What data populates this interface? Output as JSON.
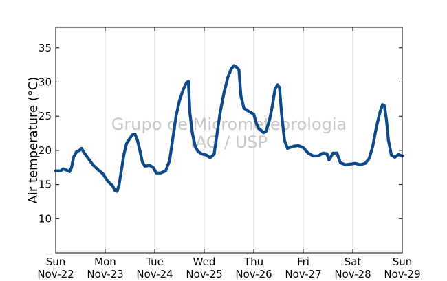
{
  "chart_data": {
    "type": "scatter",
    "ylabel": "Air temperature (°C)",
    "ylim": [
      5,
      38
    ],
    "yticks": [
      10,
      15,
      20,
      25,
      30,
      35
    ],
    "xlim": [
      0,
      7
    ],
    "xticks": [
      {
        "day": "Sun",
        "date": "Nov-22"
      },
      {
        "day": "Mon",
        "date": "Nov-23"
      },
      {
        "day": "Tue",
        "date": "Nov-24"
      },
      {
        "day": "Wed",
        "date": "Nov-25"
      },
      {
        "day": "Thu",
        "date": "Nov-26"
      },
      {
        "day": "Fri",
        "date": "Nov-27"
      },
      {
        "day": "Sat",
        "date": "Nov-28"
      },
      {
        "day": "Sun",
        "date": "Nov-29"
      }
    ],
    "grid": "vertical",
    "watermark": [
      "Grupo de Micrometeorologia",
      "IAG / USP"
    ],
    "series": [
      {
        "color": "#0d4a8a",
        "points": [
          [
            0.0,
            17.0
          ],
          [
            0.1,
            17.0
          ],
          [
            0.15,
            17.3
          ],
          [
            0.22,
            17.1
          ],
          [
            0.28,
            16.9
          ],
          [
            0.32,
            17.5
          ],
          [
            0.36,
            19.0
          ],
          [
            0.42,
            19.8
          ],
          [
            0.48,
            20.0
          ],
          [
            0.52,
            20.3
          ],
          [
            0.58,
            19.6
          ],
          [
            0.65,
            18.9
          ],
          [
            0.75,
            17.9
          ],
          [
            0.85,
            17.2
          ],
          [
            0.95,
            16.6
          ],
          [
            1.05,
            15.5
          ],
          [
            1.15,
            14.8
          ],
          [
            1.2,
            14.1
          ],
          [
            1.24,
            14.0
          ],
          [
            1.28,
            15.0
          ],
          [
            1.32,
            16.8
          ],
          [
            1.38,
            19.5
          ],
          [
            1.43,
            21.0
          ],
          [
            1.5,
            21.8
          ],
          [
            1.55,
            22.3
          ],
          [
            1.6,
            22.4
          ],
          [
            1.65,
            21.5
          ],
          [
            1.7,
            20.0
          ],
          [
            1.75,
            18.3
          ],
          [
            1.8,
            17.7
          ],
          [
            1.9,
            17.8
          ],
          [
            1.97,
            17.5
          ],
          [
            2.03,
            16.7
          ],
          [
            2.12,
            16.7
          ],
          [
            2.22,
            17.0
          ],
          [
            2.3,
            18.5
          ],
          [
            2.36,
            21.5
          ],
          [
            2.43,
            25.0
          ],
          [
            2.5,
            27.3
          ],
          [
            2.58,
            29.0
          ],
          [
            2.64,
            29.9
          ],
          [
            2.68,
            30.1
          ],
          [
            2.71,
            25.5
          ],
          [
            2.76,
            22.5
          ],
          [
            2.82,
            20.5
          ],
          [
            2.88,
            19.8
          ],
          [
            2.95,
            19.5
          ],
          [
            3.05,
            19.3
          ],
          [
            3.12,
            18.9
          ],
          [
            3.2,
            19.5
          ],
          [
            3.26,
            22.5
          ],
          [
            3.32,
            25.5
          ],
          [
            3.4,
            28.5
          ],
          [
            3.48,
            30.8
          ],
          [
            3.55,
            32.0
          ],
          [
            3.6,
            32.4
          ],
          [
            3.65,
            32.2
          ],
          [
            3.7,
            31.8
          ],
          [
            3.74,
            28.0
          ],
          [
            3.8,
            26.2
          ],
          [
            3.9,
            25.7
          ],
          [
            4.0,
            25.3
          ],
          [
            4.05,
            24.0
          ],
          [
            4.1,
            23.2
          ],
          [
            4.2,
            22.6
          ],
          [
            4.25,
            22.8
          ],
          [
            4.32,
            24.5
          ],
          [
            4.38,
            26.7
          ],
          [
            4.43,
            29.0
          ],
          [
            4.48,
            29.6
          ],
          [
            4.52,
            29.2
          ],
          [
            4.56,
            25.5
          ],
          [
            4.62,
            21.5
          ],
          [
            4.68,
            20.3
          ],
          [
            4.8,
            20.6
          ],
          [
            4.9,
            20.7
          ],
          [
            5.0,
            20.4
          ],
          [
            5.1,
            19.6
          ],
          [
            5.2,
            19.2
          ],
          [
            5.3,
            19.2
          ],
          [
            5.4,
            19.6
          ],
          [
            5.48,
            19.5
          ],
          [
            5.52,
            18.6
          ],
          [
            5.6,
            19.6
          ],
          [
            5.68,
            19.6
          ],
          [
            5.75,
            18.2
          ],
          [
            5.85,
            17.9
          ],
          [
            5.95,
            18.0
          ],
          [
            6.05,
            18.1
          ],
          [
            6.15,
            17.9
          ],
          [
            6.25,
            18.1
          ],
          [
            6.33,
            18.8
          ],
          [
            6.4,
            20.5
          ],
          [
            6.48,
            23.5
          ],
          [
            6.55,
            25.6
          ],
          [
            6.6,
            26.7
          ],
          [
            6.64,
            26.5
          ],
          [
            6.68,
            24.5
          ],
          [
            6.72,
            21.5
          ],
          [
            6.78,
            19.3
          ],
          [
            6.85,
            19.0
          ],
          [
            6.92,
            19.4
          ],
          [
            7.0,
            19.2
          ]
        ]
      }
    ]
  }
}
